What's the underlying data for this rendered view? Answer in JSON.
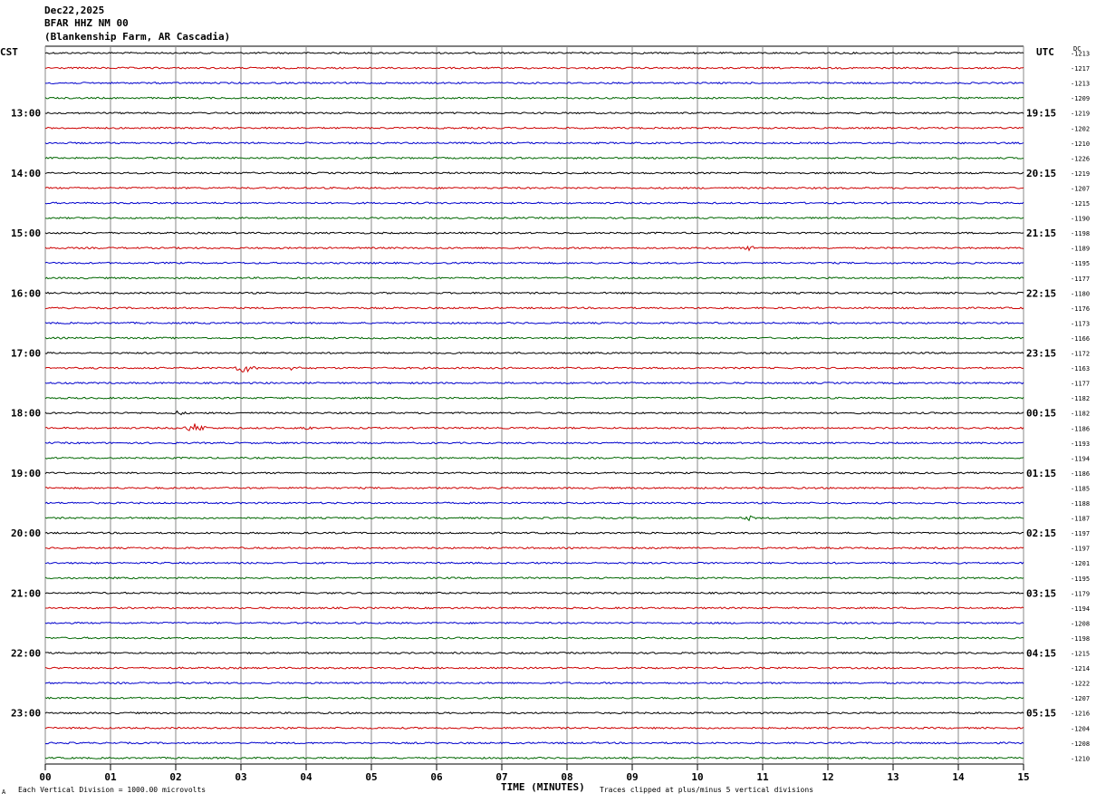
{
  "header": {
    "date": "Dec22,2025",
    "station": "BFAR HHZ NM 00",
    "location": "(Blankenship Farm, AR Cascadia)"
  },
  "left_timezone": "CST",
  "right_timezone": "UTC",
  "dc_header": "DC",
  "footer": {
    "scale_note": "Each Vertical Division = 1000.00 microvolts",
    "xlabel": "TIME (MINUTES)",
    "clip_note": "Traces clipped at plus/minus 5 vertical divisions",
    "corner_mark": "A"
  },
  "colors": {
    "trace_cycle": [
      "#000000",
      "#cc0000",
      "#0000cc",
      "#006600"
    ],
    "grid": "#888888",
    "background": "#ffffff"
  },
  "chart_data": {
    "type": "helicorder",
    "xlabel": "TIME (MINUTES)",
    "xlim": [
      0,
      15
    ],
    "x_ticks": [
      "00",
      "01",
      "02",
      "03",
      "04",
      "05",
      "06",
      "07",
      "08",
      "09",
      "10",
      "11",
      "12",
      "13",
      "14",
      "15"
    ],
    "trace_minutes": 15,
    "left_hour_labels": [
      "13:00",
      "14:00",
      "15:00",
      "16:00",
      "17:00",
      "18:00",
      "19:00",
      "20:00",
      "21:00",
      "22:00",
      "23:00"
    ],
    "right_hour_labels": [
      "19:15",
      "20:15",
      "21:15",
      "22:15",
      "23:15",
      "00:15",
      "01:15",
      "02:15",
      "03:15",
      "04:15",
      "05:15"
    ],
    "hour_label_first_row": 4,
    "rows_per_hour": 4,
    "dc_offsets": [
      "-1213",
      "-1217",
      "-1213",
      "-1209",
      "-1219",
      "-1202",
      "-1210",
      "-1226",
      "-1219",
      "-1207",
      "-1215",
      "-1190",
      "-1198",
      "-1189",
      "-1195",
      "-1177",
      "-1180",
      "-1176",
      "-1173",
      "-1166",
      "-1172",
      "-1163",
      "-1177",
      "-1182",
      "-1182",
      "-1186",
      "-1193",
      "-1194",
      "-1186",
      "-1185",
      "-1188",
      "-1187",
      "-1197",
      "-1197",
      "-1201",
      "-1195",
      "-1179",
      "-1194",
      "-1208",
      "-1198",
      "-1215",
      "-1214",
      "-1222",
      "-1207",
      "-1216",
      "-1204",
      "-1208",
      "-1210"
    ],
    "events": [
      {
        "row": 21,
        "minute": 3.05,
        "amplitude": "large"
      },
      {
        "row": 21,
        "minute": 3.8,
        "amplitude": "small"
      },
      {
        "row": 24,
        "minute": 2.05,
        "amplitude": "small"
      },
      {
        "row": 25,
        "minute": 2.3,
        "amplitude": "large"
      },
      {
        "row": 25,
        "minute": 4.0,
        "amplitude": "small"
      },
      {
        "row": 13,
        "minute": 10.8,
        "amplitude": "small"
      },
      {
        "row": 31,
        "minute": 10.8,
        "amplitude": "small"
      }
    ]
  }
}
